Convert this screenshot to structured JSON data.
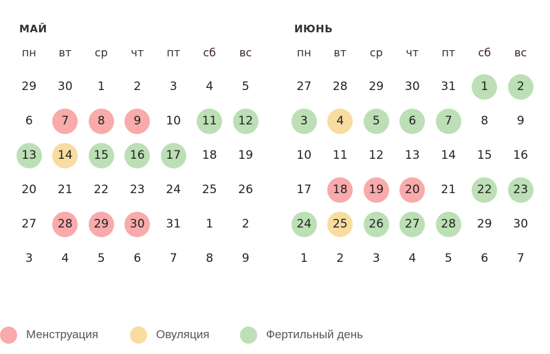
{
  "colors": {
    "menstruation": "#f9aaaa",
    "ovulation": "#f8dca0",
    "fertile": "#bcdfb5"
  },
  "weekdays": [
    "пн",
    "вт",
    "ср",
    "чт",
    "пт",
    "сб",
    "вс"
  ],
  "months": [
    {
      "title": "МАЙ",
      "weeks": [
        [
          {
            "d": "29",
            "t": ""
          },
          {
            "d": "30",
            "t": ""
          },
          {
            "d": "1",
            "t": ""
          },
          {
            "d": "2",
            "t": ""
          },
          {
            "d": "3",
            "t": ""
          },
          {
            "d": "4",
            "t": ""
          },
          {
            "d": "5",
            "t": ""
          }
        ],
        [
          {
            "d": "6",
            "t": ""
          },
          {
            "d": "7",
            "t": "menstruation"
          },
          {
            "d": "8",
            "t": "menstruation"
          },
          {
            "d": "9",
            "t": "menstruation"
          },
          {
            "d": "10",
            "t": ""
          },
          {
            "d": "11",
            "t": "fertile"
          },
          {
            "d": "12",
            "t": "fertile"
          }
        ],
        [
          {
            "d": "13",
            "t": "fertile"
          },
          {
            "d": "14",
            "t": "ovulation"
          },
          {
            "d": "15",
            "t": "fertile"
          },
          {
            "d": "16",
            "t": "fertile"
          },
          {
            "d": "17",
            "t": "fertile"
          },
          {
            "d": "18",
            "t": ""
          },
          {
            "d": "19",
            "t": ""
          }
        ],
        [
          {
            "d": "20",
            "t": ""
          },
          {
            "d": "21",
            "t": ""
          },
          {
            "d": "22",
            "t": ""
          },
          {
            "d": "23",
            "t": ""
          },
          {
            "d": "24",
            "t": ""
          },
          {
            "d": "25",
            "t": ""
          },
          {
            "d": "26",
            "t": ""
          }
        ],
        [
          {
            "d": "27",
            "t": ""
          },
          {
            "d": "28",
            "t": "menstruation"
          },
          {
            "d": "29",
            "t": "menstruation"
          },
          {
            "d": "30",
            "t": "menstruation"
          },
          {
            "d": "31",
            "t": ""
          },
          {
            "d": "1",
            "t": ""
          },
          {
            "d": "2",
            "t": ""
          }
        ],
        [
          {
            "d": "3",
            "t": ""
          },
          {
            "d": "4",
            "t": ""
          },
          {
            "d": "5",
            "t": ""
          },
          {
            "d": "6",
            "t": ""
          },
          {
            "d": "7",
            "t": ""
          },
          {
            "d": "8",
            "t": ""
          },
          {
            "d": "9",
            "t": ""
          }
        ]
      ]
    },
    {
      "title": "ИЮНЬ",
      "weeks": [
        [
          {
            "d": "27",
            "t": ""
          },
          {
            "d": "28",
            "t": ""
          },
          {
            "d": "29",
            "t": ""
          },
          {
            "d": "30",
            "t": ""
          },
          {
            "d": "31",
            "t": ""
          },
          {
            "d": "1",
            "t": "fertile"
          },
          {
            "d": "2",
            "t": "fertile"
          }
        ],
        [
          {
            "d": "3",
            "t": "fertile"
          },
          {
            "d": "4",
            "t": "ovulation"
          },
          {
            "d": "5",
            "t": "fertile"
          },
          {
            "d": "6",
            "t": "fertile"
          },
          {
            "d": "7",
            "t": "fertile"
          },
          {
            "d": "8",
            "t": ""
          },
          {
            "d": "9",
            "t": ""
          }
        ],
        [
          {
            "d": "10",
            "t": ""
          },
          {
            "d": "11",
            "t": ""
          },
          {
            "d": "12",
            "t": ""
          },
          {
            "d": "13",
            "t": ""
          },
          {
            "d": "14",
            "t": ""
          },
          {
            "d": "15",
            "t": ""
          },
          {
            "d": "16",
            "t": ""
          }
        ],
        [
          {
            "d": "17",
            "t": ""
          },
          {
            "d": "18",
            "t": "menstruation"
          },
          {
            "d": "19",
            "t": "menstruation"
          },
          {
            "d": "20",
            "t": "menstruation"
          },
          {
            "d": "21",
            "t": ""
          },
          {
            "d": "22",
            "t": "fertile"
          },
          {
            "d": "23",
            "t": "fertile"
          }
        ],
        [
          {
            "d": "24",
            "t": "fertile"
          },
          {
            "d": "25",
            "t": "ovulation"
          },
          {
            "d": "26",
            "t": "fertile"
          },
          {
            "d": "27",
            "t": "fertile"
          },
          {
            "d": "28",
            "t": "fertile"
          },
          {
            "d": "29",
            "t": ""
          },
          {
            "d": "30",
            "t": ""
          }
        ],
        [
          {
            "d": "1",
            "t": ""
          },
          {
            "d": "2",
            "t": ""
          },
          {
            "d": "3",
            "t": ""
          },
          {
            "d": "4",
            "t": ""
          },
          {
            "d": "5",
            "t": ""
          },
          {
            "d": "6",
            "t": ""
          },
          {
            "d": "7",
            "t": ""
          }
        ]
      ]
    }
  ],
  "legend": [
    {
      "type": "menstruation",
      "label": "Менструация"
    },
    {
      "type": "ovulation",
      "label": "Овуляция"
    },
    {
      "type": "fertile",
      "label": "Фертильный день"
    }
  ]
}
